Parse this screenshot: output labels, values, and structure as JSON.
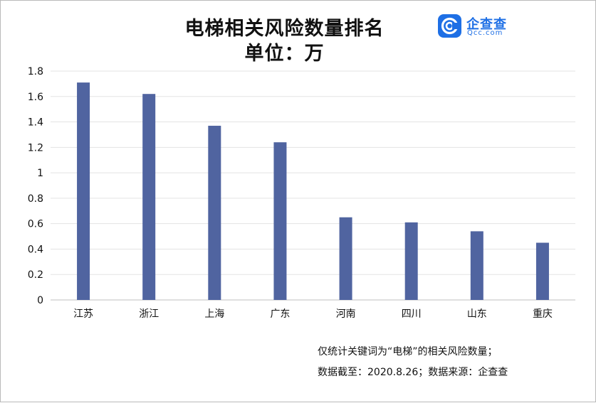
{
  "chart_data": {
    "type": "bar",
    "title": "电梯相关风险数量排名",
    "subtitle": "单位：万",
    "categories": [
      "江苏",
      "浙江",
      "上海",
      "广东",
      "河南",
      "四川",
      "山东",
      "重庆"
    ],
    "values": [
      1.71,
      1.62,
      1.37,
      1.24,
      0.65,
      0.61,
      0.54,
      0.45
    ],
    "y_ticks": [
      "0",
      "0.2",
      "0.4",
      "0.6",
      "0.8",
      "1",
      "1.2",
      "1.4",
      "1.6",
      "1.8"
    ],
    "ylim": [
      0,
      1.8
    ],
    "xlabel": "",
    "ylabel": "",
    "grid": true,
    "bar_color": "#5064a0"
  },
  "brand": {
    "name": "企查查",
    "url": "Qcc.com",
    "color": "#1e6fe5"
  },
  "footnotes": {
    "line1": "仅统计关键词为“电梯”的相关风险数量；",
    "line2": "数据截至：2020.8.26；数据来源：企查查"
  }
}
